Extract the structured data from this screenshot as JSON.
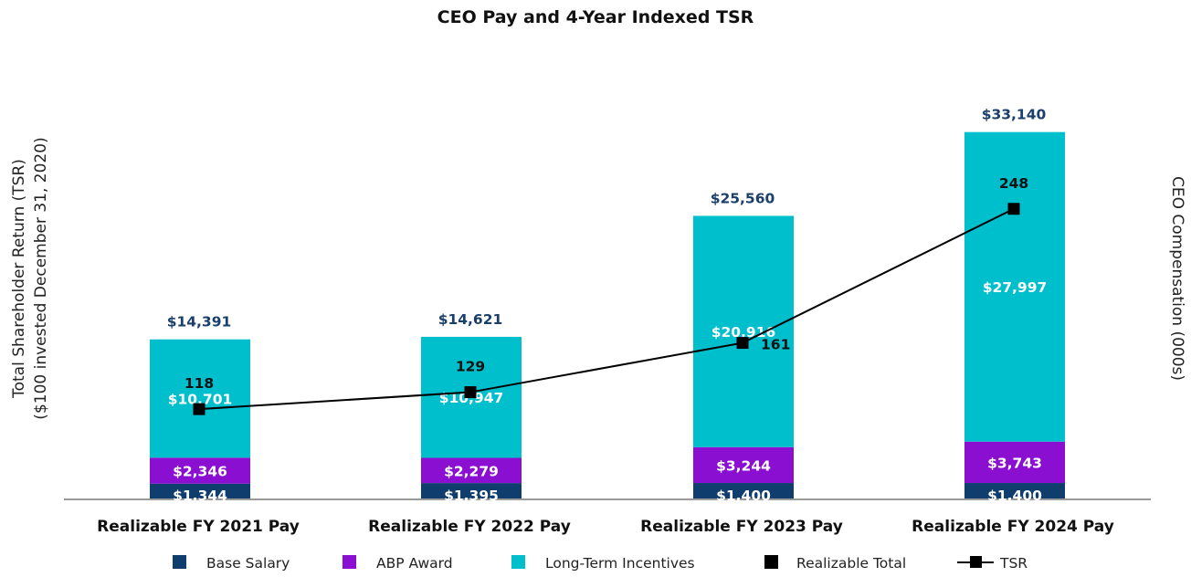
{
  "chart_data": {
    "type": "bar",
    "stacked": true,
    "title": "CEO Pay and 4-Year Indexed TSR",
    "ylabel_left": [
      "Total Shareholder Return (TSR)",
      "($100 invested December 31, 2020)"
    ],
    "ylabel_right": "CEO Compensation (000s)",
    "categories": [
      "Realizable FY 2021 Pay",
      "Realizable FY 2022 Pay",
      "Realizable FY 2023 Pay",
      "Realizable FY 2024 Pay"
    ],
    "series": [
      {
        "name": "Base Salary",
        "color": "#0f3d6e",
        "values": [
          1344,
          1395,
          1400,
          1400
        ],
        "labels": [
          "$1,344",
          "$1,395",
          "$1,400",
          "$1,400"
        ]
      },
      {
        "name": "ABP Award",
        "color": "#8a0fd1",
        "values": [
          2346,
          2279,
          3244,
          3743
        ],
        "labels": [
          "$2,346",
          "$2,279",
          "$3,244",
          "$3,743"
        ]
      },
      {
        "name": "Long-Term Incentives",
        "color": "#00bfcc",
        "values": [
          10701,
          10947,
          20916,
          27997
        ],
        "labels": [
          "$10,701",
          "$10,947",
          "$20,916",
          "$27,997"
        ]
      }
    ],
    "totals": {
      "name": "Realizable Total",
      "values": [
        14391,
        14621,
        25560,
        33140
      ],
      "labels": [
        "$14,391",
        "$14,621",
        "$25,560",
        "$33,140"
      ]
    },
    "line": {
      "name": "TSR",
      "color": "#000000",
      "values": [
        118,
        129,
        161,
        248
      ],
      "labels": [
        "118",
        "129",
        "161",
        "248"
      ]
    },
    "ylim_comp": [
      0,
      36000
    ],
    "ylim_tsr": [
      60,
      300
    ],
    "legend": [
      "Base Salary",
      "ABP Award",
      "Long-Term Incentives",
      "Realizable Total",
      "TSR"
    ],
    "legend_position": "bottom"
  }
}
